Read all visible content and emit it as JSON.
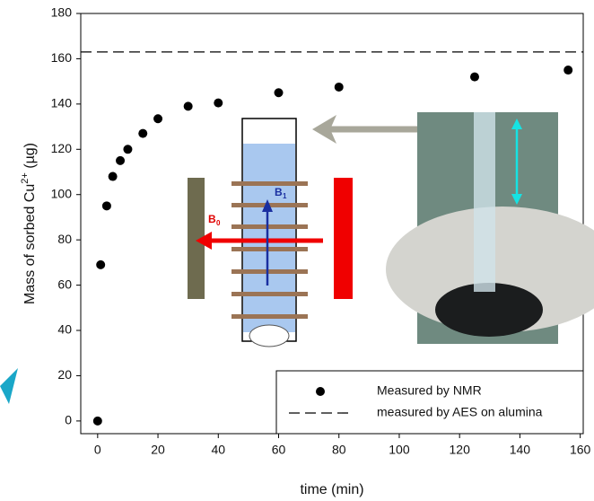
{
  "chart_data": {
    "type": "scatter",
    "x_label": "time (min)",
    "y_label": [
      "Mass of sorbed Cu",
      "2+",
      " (µg)"
    ],
    "xlim": [
      -5.6,
      161
    ],
    "ylim": [
      -5.6,
      180
    ],
    "xticks": [
      0,
      20,
      40,
      60,
      80,
      100,
      120,
      140,
      160
    ],
    "yticks": [
      0,
      20,
      40,
      60,
      80,
      100,
      120,
      140,
      160,
      180
    ],
    "series": [
      {
        "name": "Measured by NMR",
        "color": "#000000",
        "x": [
          0,
          1,
          3,
          5,
          7.5,
          10,
          15,
          20,
          30,
          40,
          60,
          80,
          125,
          156
        ],
        "values": [
          0,
          69,
          95,
          108,
          115,
          120,
          127,
          133.5,
          139,
          140.5,
          145,
          147.5,
          152,
          155
        ]
      }
    ],
    "reference_lines": [
      {
        "name": "measured by AES on alumina",
        "value": 163,
        "style": "dashed",
        "color": "#000000"
      }
    ],
    "inset_labels": [
      "B",
      "1",
      "B",
      "0"
    ]
  }
}
